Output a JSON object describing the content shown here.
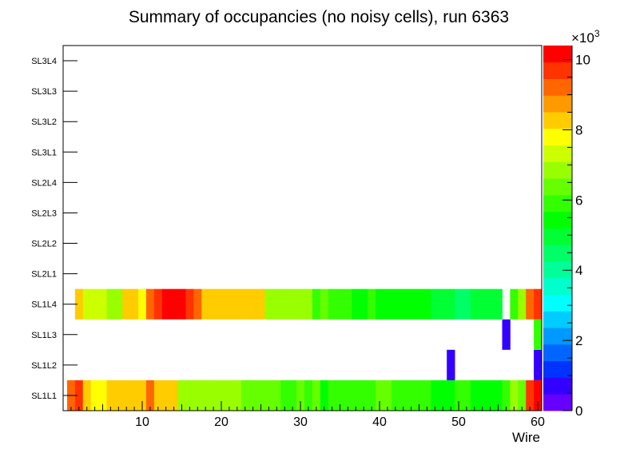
{
  "chart_data": {
    "type": "heatmap",
    "title": "Summary of occupancies (no noisy cells), run 6363",
    "xlabel": "Wire",
    "ylabel": "",
    "x_range": [
      0,
      60.5
    ],
    "x_ticks": [
      10,
      20,
      30,
      40,
      50,
      60
    ],
    "y_categories": [
      "SL1L1",
      "SL1L2",
      "SL1L3",
      "SL1L4",
      "SL2L1",
      "SL2L2",
      "SL2L3",
      "SL2L4",
      "SL3L1",
      "SL3L2",
      "SL3L3",
      "SL3L4"
    ],
    "z_range": [
      0,
      10400
    ],
    "z_multiplier": "×10^3",
    "z_exponent": "3",
    "z_ticks": [
      0,
      2,
      4,
      6,
      8,
      10
    ],
    "rows": {
      "SL1L1": [
        9200,
        9800,
        8100,
        7800,
        7800,
        8100,
        8100,
        8100,
        8100,
        8100,
        9200,
        8100,
        8100,
        8100,
        7000,
        7000,
        7000,
        6700,
        7000,
        6700,
        6700,
        7000,
        6300,
        6300,
        6300,
        6300,
        6300,
        6000,
        6000,
        6300,
        6000,
        6300,
        5600,
        6000,
        6000,
        6000,
        6000,
        6000,
        6000,
        6300,
        6300,
        6000,
        6000,
        6000,
        6000,
        6000,
        5200,
        5200,
        5200,
        6000,
        6000,
        5600,
        5600,
        5600,
        5600,
        6000,
        7000,
        6300,
        9600,
        10200
      ],
      "SL1L2": [
        null,
        null,
        null,
        null,
        null,
        null,
        null,
        null,
        null,
        null,
        null,
        null,
        null,
        null,
        null,
        null,
        null,
        null,
        null,
        null,
        null,
        null,
        null,
        null,
        null,
        null,
        null,
        null,
        null,
        null,
        null,
        null,
        null,
        null,
        null,
        null,
        null,
        null,
        null,
        null,
        null,
        null,
        null,
        null,
        null,
        null,
        null,
        null,
        600,
        null,
        null,
        null,
        null,
        null,
        null,
        null,
        null,
        null,
        null,
        600
      ],
      "SL1L3": [
        null,
        null,
        null,
        null,
        null,
        null,
        null,
        null,
        null,
        null,
        null,
        null,
        null,
        null,
        null,
        null,
        null,
        null,
        null,
        null,
        null,
        null,
        null,
        null,
        null,
        null,
        null,
        null,
        null,
        null,
        null,
        null,
        null,
        null,
        null,
        null,
        null,
        null,
        null,
        null,
        null,
        null,
        null,
        null,
        null,
        null,
        null,
        null,
        null,
        null,
        null,
        null,
        null,
        null,
        null,
        600,
        null,
        null,
        null,
        6000
      ],
      "SL1L4": [
        null,
        8100,
        7400,
        7400,
        7400,
        7000,
        7000,
        8100,
        8500,
        7800,
        9200,
        9600,
        10200,
        10200,
        10200,
        9600,
        9200,
        8500,
        8500,
        8500,
        8100,
        8100,
        8100,
        8100,
        8100,
        7000,
        7000,
        7000,
        6700,
        7000,
        6700,
        6000,
        6300,
        6000,
        6000,
        6000,
        5600,
        5600,
        6000,
        5600,
        5200,
        5200,
        5200,
        5200,
        5600,
        5200,
        4800,
        4800,
        4800,
        4400,
        4400,
        4800,
        4800,
        4800,
        4800,
        null,
        6000,
        7000,
        9200,
        9600
      ]
    }
  },
  "colors": {
    "palette": [
      "#6600ff",
      "#3300ff",
      "#0033ff",
      "#0066ff",
      "#0099ff",
      "#00ccff",
      "#00ffff",
      "#00ffcc",
      "#00ff99",
      "#00ff66",
      "#00ff33",
      "#00ff00",
      "#33ff00",
      "#66ff00",
      "#99ff00",
      "#ccff00",
      "#ffff00",
      "#ffcc00",
      "#ff9900",
      "#ff6600",
      "#ff3300",
      "#ff0000"
    ]
  }
}
